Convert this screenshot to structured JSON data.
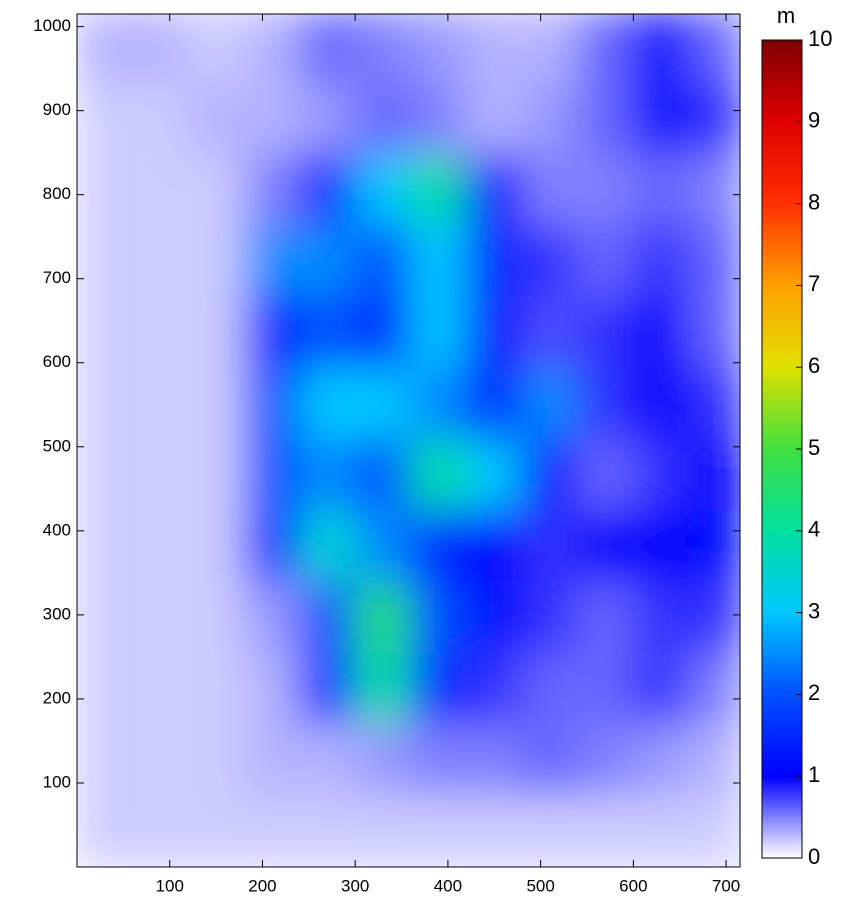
{
  "chart_data": {
    "type": "heatmap",
    "xlim": [
      0,
      715
    ],
    "ylim": [
      0,
      1015
    ],
    "xticks": [
      100,
      200,
      300,
      400,
      500,
      600,
      700
    ],
    "yticks": [
      100,
      200,
      300,
      400,
      500,
      600,
      700,
      800,
      900,
      1000
    ],
    "x_edges": [
      0,
      60,
      120,
      180,
      240,
      300,
      360,
      420,
      480,
      540,
      600,
      660,
      720
    ],
    "y_edges": [
      0,
      85,
      170,
      255,
      340,
      425,
      510,
      595,
      680,
      765,
      850,
      935,
      1020
    ],
    "z": [
      [
        0.2,
        0.2,
        0.2,
        0.2,
        0.2,
        0.2,
        0.2,
        0.2,
        0.2,
        0.2,
        0.2,
        0.2
      ],
      [
        0.2,
        0.2,
        0.2,
        0.3,
        0.3,
        0.4,
        0.5,
        0.5,
        0.6,
        0.5,
        0.4,
        0.3
      ],
      [
        0.2,
        0.2,
        0.2,
        0.3,
        1.5,
        4,
        1.5,
        0.8,
        0.6,
        0.6,
        0.8,
        0.5
      ],
      [
        0.2,
        0.2,
        0.2,
        0.4,
        2,
        4.5,
        2,
        1.2,
        0.8,
        0.6,
        0.8,
        0.8
      ],
      [
        0.2,
        0.2,
        0.2,
        1.5,
        3.5,
        2.5,
        1.5,
        1,
        0.8,
        1,
        1,
        1.2
      ],
      [
        0.2,
        0.2,
        0.2,
        2,
        2.5,
        2,
        4,
        3,
        1,
        0.6,
        0.8,
        1
      ],
      [
        0.2,
        0.2,
        0.2,
        2,
        3,
        3,
        2.5,
        1.5,
        2.5,
        0.8,
        1,
        0.8
      ],
      [
        0.2,
        0.2,
        0.2,
        1.5,
        2,
        1.5,
        3,
        1.2,
        0.7,
        0.8,
        1,
        0.6
      ],
      [
        0.2,
        0.2,
        0.2,
        2.5,
        2.5,
        2,
        3,
        1.5,
        0.8,
        0.6,
        0.8,
        0.6
      ],
      [
        0.2,
        0.2,
        0.2,
        0.5,
        1.5,
        3,
        4,
        1,
        0.5,
        0.5,
        0.6,
        0.5
      ],
      [
        0.2,
        0.2,
        0.3,
        0.3,
        0.4,
        0.6,
        0.5,
        0.3,
        0.4,
        0.6,
        1.2,
        0.8
      ],
      [
        0.3,
        0.3,
        0.2,
        0.3,
        0.6,
        0.5,
        0.4,
        0.3,
        0.3,
        0.6,
        1.2,
        0.6
      ]
    ],
    "colorbar": {
      "label": "m",
      "clim": [
        0,
        10
      ],
      "ticks": [
        0,
        1,
        2,
        3,
        4,
        5,
        6,
        7,
        8,
        9,
        10
      ]
    },
    "colormap": [
      {
        "value": 0,
        "color": "#ffffff"
      },
      {
        "value": 1,
        "color": "#0000ff"
      },
      {
        "value": 2,
        "color": "#0050ff"
      },
      {
        "value": 3,
        "color": "#00c8ff"
      },
      {
        "value": 4,
        "color": "#00e0a0"
      },
      {
        "value": 5,
        "color": "#40e040"
      },
      {
        "value": 6,
        "color": "#e0e000"
      },
      {
        "value": 7,
        "color": "#ffa000"
      },
      {
        "value": 8,
        "color": "#ff3000"
      },
      {
        "value": 9,
        "color": "#e00000"
      },
      {
        "value": 10,
        "color": "#800000"
      }
    ]
  }
}
